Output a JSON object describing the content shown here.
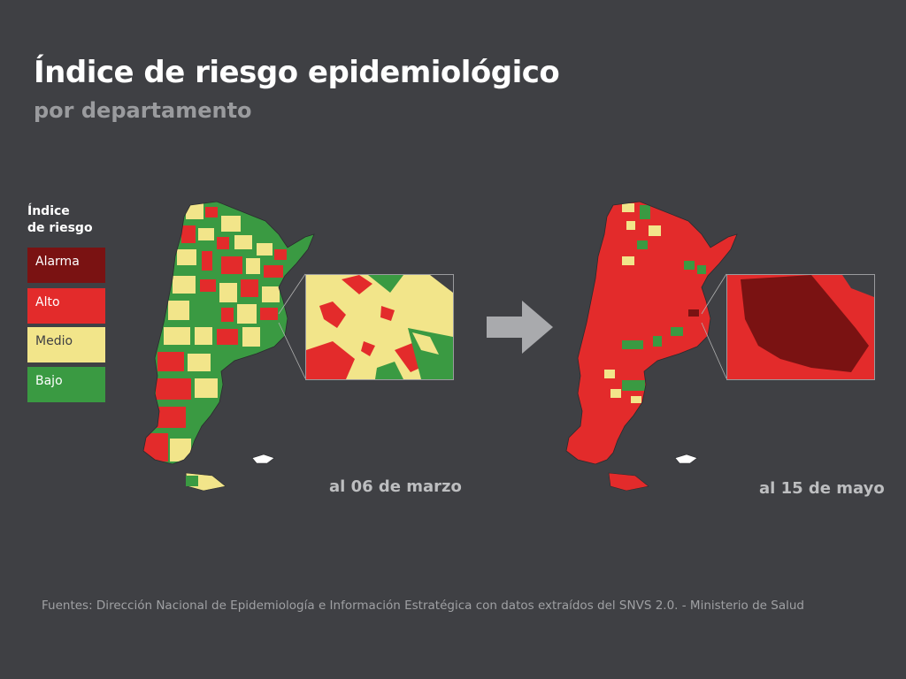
{
  "header": {
    "title": "Índice de riesgo epidemiológico",
    "subtitle": "por departamento"
  },
  "legend": {
    "title_line1": "Índice",
    "title_line2": "de riesgo",
    "items": [
      {
        "label": "Alarma",
        "color": "#7a1212"
      },
      {
        "label": "Alto",
        "color": "#e32b2b"
      },
      {
        "label": "Medio",
        "color": "#f2e58a"
      },
      {
        "label": "Bajo",
        "color": "#3a9a42"
      }
    ]
  },
  "maps": [
    {
      "date_label": "al 06 de marzo",
      "dominant": "mixed",
      "inset_dominant": "Medio"
    },
    {
      "date_label": "al 15 de mayo",
      "dominant": "Alto",
      "inset_dominant": "Alarma"
    }
  ],
  "transition_arrow": "arrow-right-icon",
  "footer": {
    "source": "Fuentes: Dirección Nacional de Epidemiología e Información Estratégica con datos extraídos del SNVS 2.0. - Ministerio de Salud"
  }
}
